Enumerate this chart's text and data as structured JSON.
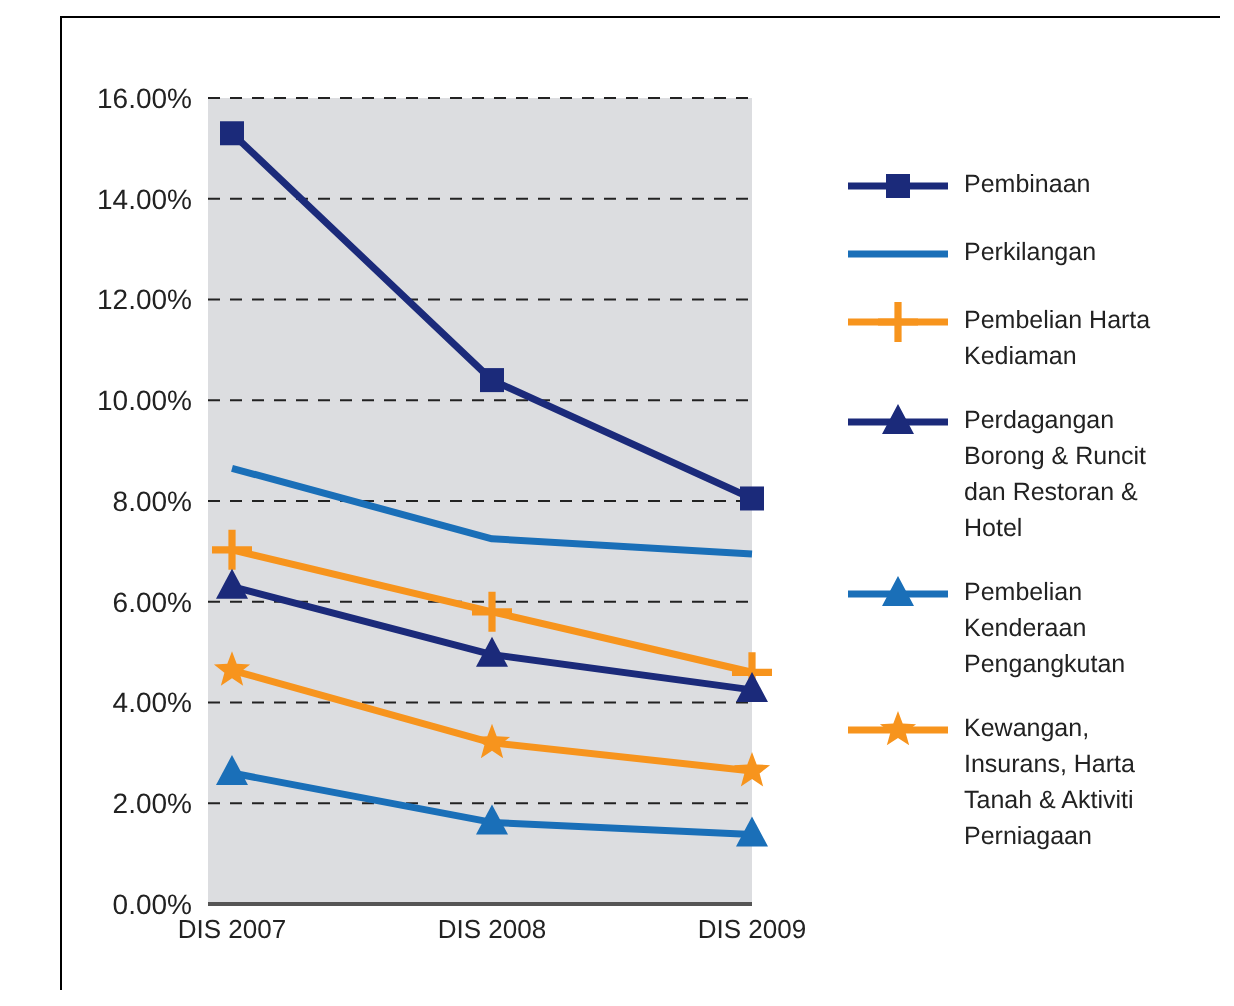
{
  "chart_data": {
    "type": "line",
    "categories": [
      "DIS 2007",
      "DIS 2008",
      "DIS 2009"
    ],
    "series": [
      {
        "name": "Pembinaan",
        "color": "#1b2a7a",
        "marker": "square",
        "values": [
          15.3,
          10.4,
          8.05
        ]
      },
      {
        "name": "Perkilangan",
        "color": "#1a6fb8",
        "marker": "none",
        "values": [
          8.65,
          7.25,
          6.95
        ]
      },
      {
        "name": "Pembelian Harta Kediaman",
        "color": "#f7941d",
        "marker": "cross",
        "values": [
          7.03,
          5.8,
          4.6
        ]
      },
      {
        "name": "Perdagangan Borong & Runcit dan Restoran & Hotel",
        "color": "#1b2a7a",
        "marker": "triangle",
        "values": [
          6.3,
          4.95,
          4.25
        ]
      },
      {
        "name": "Pembelian Kenderaan Pengangkutan",
        "color": "#1a6fb8",
        "marker": "triangle",
        "values": [
          2.6,
          1.62,
          1.38
        ]
      },
      {
        "name": "Kewangan, Insurans, Harta Tanah & Aktiviti Perniagaan",
        "color": "#f7941d",
        "marker": "star",
        "values": [
          4.64,
          3.2,
          2.64
        ]
      }
    ],
    "ylim": [
      0,
      16
    ],
    "yticks": [
      {
        "value": 0,
        "label": "0.00%"
      },
      {
        "value": 2,
        "label": "2.00%"
      },
      {
        "value": 4,
        "label": "4.00%"
      },
      {
        "value": 6,
        "label": "6.00%"
      },
      {
        "value": 8,
        "label": "8.00%"
      },
      {
        "value": 10,
        "label": "10.00%"
      },
      {
        "value": 12,
        "label": "12.00%"
      },
      {
        "value": 14,
        "label": "14.00%"
      },
      {
        "value": 16,
        "label": "16.00%"
      }
    ],
    "grid": "y",
    "legend": "right"
  }
}
